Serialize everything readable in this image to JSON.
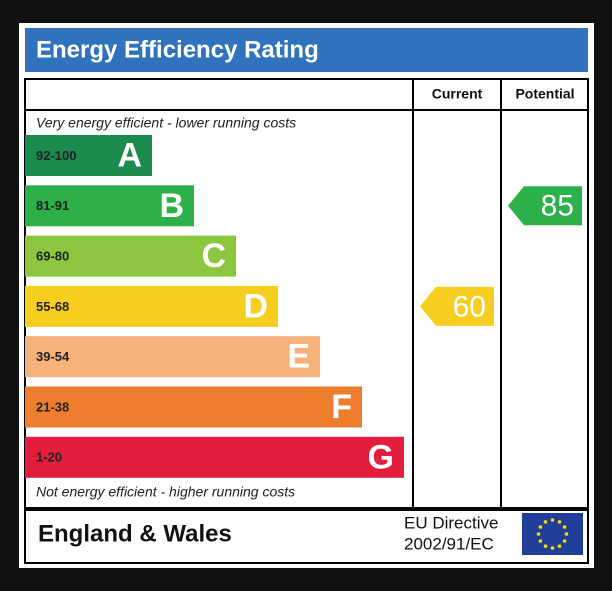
{
  "header": {
    "title": "Energy Efficiency Rating"
  },
  "columns": {
    "current": "Current",
    "potential": "Potential"
  },
  "top_note": "Very energy efficient - lower running costs",
  "bottom_note": "Not energy efficient - higher running costs",
  "bands": [
    {
      "range": "92-100",
      "letter": "A",
      "color": "#1a8a4d"
    },
    {
      "range": "81-91",
      "letter": "B",
      "color": "#2bb04a"
    },
    {
      "range": "69-80",
      "letter": "C",
      "color": "#8cc63f"
    },
    {
      "range": "55-68",
      "letter": "D",
      "color": "#f7ce1f"
    },
    {
      "range": "39-54",
      "letter": "E",
      "color": "#f7b27a"
    },
    {
      "range": "21-38",
      "letter": "F",
      "color": "#ee7d2d"
    },
    {
      "range": "1-20",
      "letter": "G",
      "color": "#e31d3c"
    }
  ],
  "ratings": {
    "current": 60,
    "potential": 85
  },
  "footer": {
    "region": "England & Wales",
    "directive_line1": "EU Directive",
    "directive_line2": "2002/91/EC"
  }
}
